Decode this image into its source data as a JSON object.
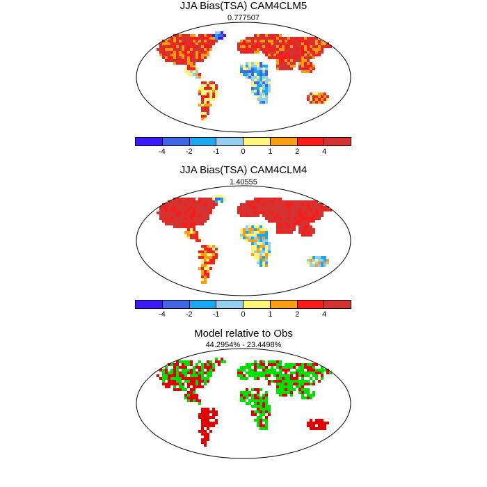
{
  "panels": [
    {
      "title": "JJA Bias(TSA) CAM4CLM5",
      "subtitle": "0.777507",
      "scheme": "bias_a"
    },
    {
      "title": "JJA Bias(TSA) CAM4CLM4",
      "subtitle": "1.40555",
      "scheme": "bias_b"
    },
    {
      "title": "Model relative to Obs",
      "subtitle": "44.2954% - 23.4498%",
      "scheme": "relative"
    }
  ],
  "colorbar": {
    "colors": [
      "#3b1aff",
      "#3e66e6",
      "#1ba8f2",
      "#92cff0",
      "#fdf47a",
      "#ff9d10",
      "#ff1a1a",
      "#d43131"
    ],
    "tick_labels": [
      "-4",
      "-2",
      "-1",
      "0",
      "1",
      "2",
      "4"
    ]
  },
  "relative_colors": {
    "better": "#00e000",
    "worse": "#e00000"
  }
}
